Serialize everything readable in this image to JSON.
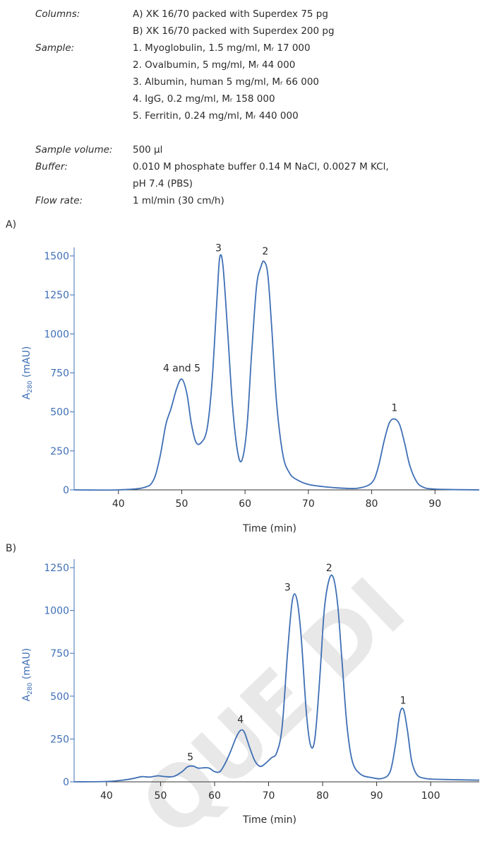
{
  "params": [
    {
      "label": "Columns:",
      "lines": [
        "A) XK 16/70 packed with Superdex 75 pg",
        "B) XK 16/70 packed with Superdex 200 pg"
      ]
    },
    {
      "label": "Sample:",
      "lines": [
        "1. Myoglobulin, 1.5 mg/ml, Mᵣ 17 000",
        "2. Ovalbumin, 5 mg/ml, Mᵣ 44 000",
        "3. Albumin, human 5 mg/ml, Mᵣ 66 000",
        "4. IgG, 0.2 mg/ml, Mᵣ 158 000",
        "5. Ferritin, 0.24 mg/ml, Mᵣ 440 000"
      ]
    },
    {
      "label": "Sample volume:",
      "lines": [
        "500 µl"
      ]
    },
    {
      "label": "Buffer:",
      "lines": [
        "0.010 M phosphate buffer 0.14 M NaCl, 0.0027 M KCl,",
        "pH 7.4 (PBS)"
      ]
    },
    {
      "label": "Flow rate:",
      "lines": [
        "1 ml/min (30 cm/h)"
      ]
    }
  ],
  "watermark": "QUE DI",
  "chart_data": [
    {
      "type": "line",
      "panel_label": "A)",
      "xlabel": "Time (min)",
      "ylabel": "A280 (mAU)",
      "ylabel_main": "A",
      "ylabel_sub": "280",
      "ylabel_unit": " (mAU)",
      "xlim": [
        33,
        97
      ],
      "ylim": [
        0,
        1500
      ],
      "xticks": [
        40,
        50,
        60,
        70,
        80,
        90
      ],
      "yticks": [
        0,
        250,
        500,
        750,
        1000,
        1250,
        1500
      ],
      "color": "#3f6fb5",
      "series": [
        {
          "x": [
            33,
            40,
            44,
            45.5,
            46.5,
            47.5,
            48.3,
            49.2,
            50,
            50.8,
            51.5,
            52.2,
            53,
            54,
            54.8,
            55.6,
            56,
            56.5,
            57.2,
            58,
            58.8,
            59.5,
            60.3,
            61,
            61.8,
            62.5,
            63,
            63.6,
            64.2,
            65,
            66,
            67,
            68,
            70,
            73,
            76,
            78,
            80,
            81,
            82,
            82.8,
            83.6,
            84.4,
            85.2,
            86,
            87,
            88,
            90,
            97
          ],
          "y": [
            0,
            0,
            15,
            60,
            200,
            420,
            520,
            650,
            710,
            620,
            430,
            310,
            300,
            390,
            700,
            1250,
            1490,
            1440,
            1050,
            550,
            250,
            190,
            400,
            850,
            1300,
            1430,
            1465,
            1380,
            1050,
            550,
            220,
            110,
            70,
            35,
            18,
            10,
            12,
            45,
            140,
            320,
            430,
            455,
            420,
            300,
            160,
            60,
            20,
            5,
            0
          ]
        }
      ],
      "annotations": [
        {
          "text": "4 and 5",
          "x": 50,
          "y": 760
        },
        {
          "text": "3",
          "x": 55.8,
          "y": 1530
        },
        {
          "text": "2",
          "x": 63.2,
          "y": 1510
        },
        {
          "text": "1",
          "x": 83.6,
          "y": 505
        }
      ]
    },
    {
      "type": "line",
      "panel_label": "B)",
      "xlabel": "Time (min)",
      "ylabel": "A280 (mAU)",
      "ylabel_main": "A",
      "ylabel_sub": "280",
      "ylabel_unit": " (mAU)",
      "xlim": [
        34,
        109
      ],
      "ylim": [
        0,
        1250
      ],
      "xticks": [
        40,
        50,
        60,
        70,
        80,
        90,
        100
      ],
      "yticks": [
        0,
        250,
        500,
        750,
        1000,
        1250
      ],
      "color": "#3f6fb5",
      "series": [
        {
          "x": [
            34,
            40,
            43,
            45,
            46.5,
            48,
            49.5,
            51,
            52.5,
            54,
            55,
            56,
            57,
            58,
            59,
            60,
            61,
            62,
            63,
            64,
            64.8,
            65.5,
            66.5,
            67.5,
            68.5,
            69.5,
            70.5,
            71.5,
            72.5,
            73.5,
            74.4,
            75.2,
            76,
            77,
            77.8,
            78.6,
            79.5,
            80.3,
            81.2,
            82,
            82.8,
            83.6,
            84.5,
            85.5,
            87,
            89,
            91,
            92.5,
            93.5,
            94.3,
            95,
            95.7,
            96.5,
            97.5,
            99,
            101,
            109
          ],
          "y": [
            0,
            2,
            10,
            20,
            30,
            28,
            35,
            30,
            32,
            60,
            88,
            92,
            80,
            82,
            80,
            60,
            60,
            110,
            180,
            260,
            300,
            290,
            200,
            120,
            90,
            110,
            140,
            170,
            320,
            750,
            1060,
            1070,
            860,
            400,
            210,
            260,
            620,
            1000,
            1180,
            1190,
            1030,
            700,
            330,
            120,
            45,
            25,
            20,
            60,
            220,
            400,
            420,
            300,
            120,
            40,
            20,
            15,
            10
          ]
        }
      ],
      "annotations": [
        {
          "text": "5",
          "x": 55.5,
          "y": 125
        },
        {
          "text": "4",
          "x": 64.8,
          "y": 345
        },
        {
          "text": "3",
          "x": 73.5,
          "y": 1115
        },
        {
          "text": "2",
          "x": 81.2,
          "y": 1230
        },
        {
          "text": "1",
          "x": 94.9,
          "y": 455
        }
      ]
    }
  ]
}
